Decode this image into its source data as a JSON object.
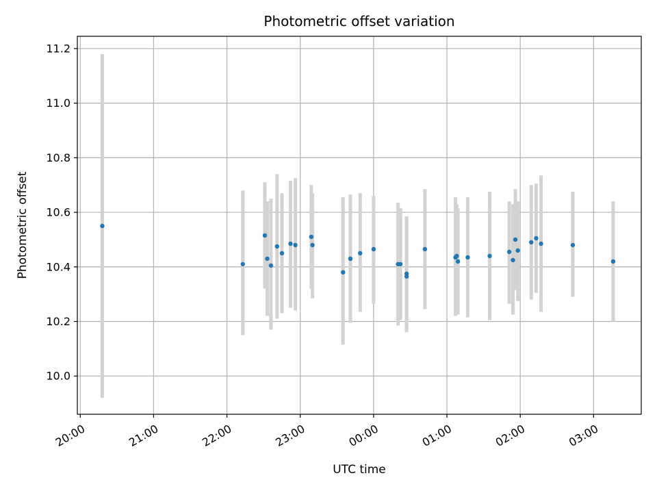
{
  "chart_data": {
    "type": "scatter",
    "title": "Photometric offset variation",
    "xlabel": "UTC time",
    "ylabel": "Photometric offset",
    "grid": true,
    "xlim_hours": [
      -0.04,
      7.65
    ],
    "ylim": [
      9.86,
      11.245
    ],
    "x_ticks": [
      {
        "h": 0,
        "label": "20:00"
      },
      {
        "h": 1,
        "label": "21:00"
      },
      {
        "h": 2,
        "label": "22:00"
      },
      {
        "h": 3,
        "label": "23:00"
      },
      {
        "h": 4,
        "label": "00:00"
      },
      {
        "h": 5,
        "label": "01:00"
      },
      {
        "h": 6,
        "label": "02:00"
      },
      {
        "h": 7,
        "label": "03:00"
      }
    ],
    "y_ticks": [
      {
        "v": 10.0,
        "label": "10.0"
      },
      {
        "v": 10.2,
        "label": "10.2"
      },
      {
        "v": 10.4,
        "label": "10.4"
      },
      {
        "v": 10.6,
        "label": "10.6"
      },
      {
        "v": 10.8,
        "label": "10.8"
      },
      {
        "v": 11.0,
        "label": "11.0"
      },
      {
        "v": 11.2,
        "label": "11.2"
      }
    ],
    "colors": {
      "point": "#1f77b4",
      "errorbar": "#d3d3d3",
      "grid": "#b0b0b0"
    },
    "points": [
      {
        "t": "20:18",
        "y": 10.55,
        "lo": 9.92,
        "hi": 11.18
      },
      {
        "t": "22:13",
        "y": 10.41,
        "lo": 10.15,
        "hi": 10.68
      },
      {
        "t": "22:31",
        "y": 10.515,
        "lo": 10.32,
        "hi": 10.71
      },
      {
        "t": "22:33",
        "y": 10.43,
        "lo": 10.22,
        "hi": 10.64
      },
      {
        "t": "22:36",
        "y": 10.405,
        "lo": 10.17,
        "hi": 10.65
      },
      {
        "t": "22:41",
        "y": 10.475,
        "lo": 10.21,
        "hi": 10.74
      },
      {
        "t": "22:45",
        "y": 10.45,
        "lo": 10.23,
        "hi": 10.67
      },
      {
        "t": "22:52",
        "y": 10.485,
        "lo": 10.25,
        "hi": 10.715
      },
      {
        "t": "22:56",
        "y": 10.48,
        "lo": 10.24,
        "hi": 10.725
      },
      {
        "t": "23:09",
        "y": 10.51,
        "lo": 10.32,
        "hi": 10.7
      },
      {
        "t": "23:10",
        "y": 10.48,
        "lo": 10.285,
        "hi": 10.67
      },
      {
        "t": "23:35",
        "y": 10.38,
        "lo": 10.115,
        "hi": 10.655
      },
      {
        "t": "23:41",
        "y": 10.43,
        "lo": 10.195,
        "hi": 10.665
      },
      {
        "t": "23:49",
        "y": 10.45,
        "lo": 10.235,
        "hi": 10.67
      },
      {
        "t": "00:00",
        "y": 10.465,
        "lo": 10.265,
        "hi": 10.66
      },
      {
        "t": "00:20",
        "y": 10.41,
        "lo": 10.185,
        "hi": 10.635
      },
      {
        "t": "00:22",
        "y": 10.41,
        "lo": 10.205,
        "hi": 10.615
      },
      {
        "t": "00:27",
        "y": 10.365,
        "lo": 10.165,
        "hi": 10.58
      },
      {
        "t": "00:27",
        "y": 10.375,
        "lo": 10.16,
        "hi": 10.585
      },
      {
        "t": "00:42",
        "y": 10.465,
        "lo": 10.245,
        "hi": 10.685
      },
      {
        "t": "01:07",
        "y": 10.435,
        "lo": 10.22,
        "hi": 10.655
      },
      {
        "t": "01:08",
        "y": 10.44,
        "lo": 10.24,
        "hi": 10.63
      },
      {
        "t": "01:09",
        "y": 10.42,
        "lo": 10.225,
        "hi": 10.615
      },
      {
        "t": "01:17",
        "y": 10.435,
        "lo": 10.215,
        "hi": 10.655
      },
      {
        "t": "01:35",
        "y": 10.44,
        "lo": 10.205,
        "hi": 10.675
      },
      {
        "t": "01:51",
        "y": 10.455,
        "lo": 10.265,
        "hi": 10.64
      },
      {
        "t": "01:54",
        "y": 10.425,
        "lo": 10.225,
        "hi": 10.63
      },
      {
        "t": "01:56",
        "y": 10.5,
        "lo": 10.315,
        "hi": 10.685
      },
      {
        "t": "01:58",
        "y": 10.46,
        "lo": 10.275,
        "hi": 10.64
      },
      {
        "t": "02:09",
        "y": 10.49,
        "lo": 10.28,
        "hi": 10.7
      },
      {
        "t": "02:13",
        "y": 10.505,
        "lo": 10.305,
        "hi": 10.705
      },
      {
        "t": "02:17",
        "y": 10.485,
        "lo": 10.235,
        "hi": 10.735
      },
      {
        "t": "02:43",
        "y": 10.48,
        "lo": 10.29,
        "hi": 10.675
      },
      {
        "t": "03:16",
        "y": 10.42,
        "lo": 10.2,
        "hi": 10.64
      }
    ]
  }
}
